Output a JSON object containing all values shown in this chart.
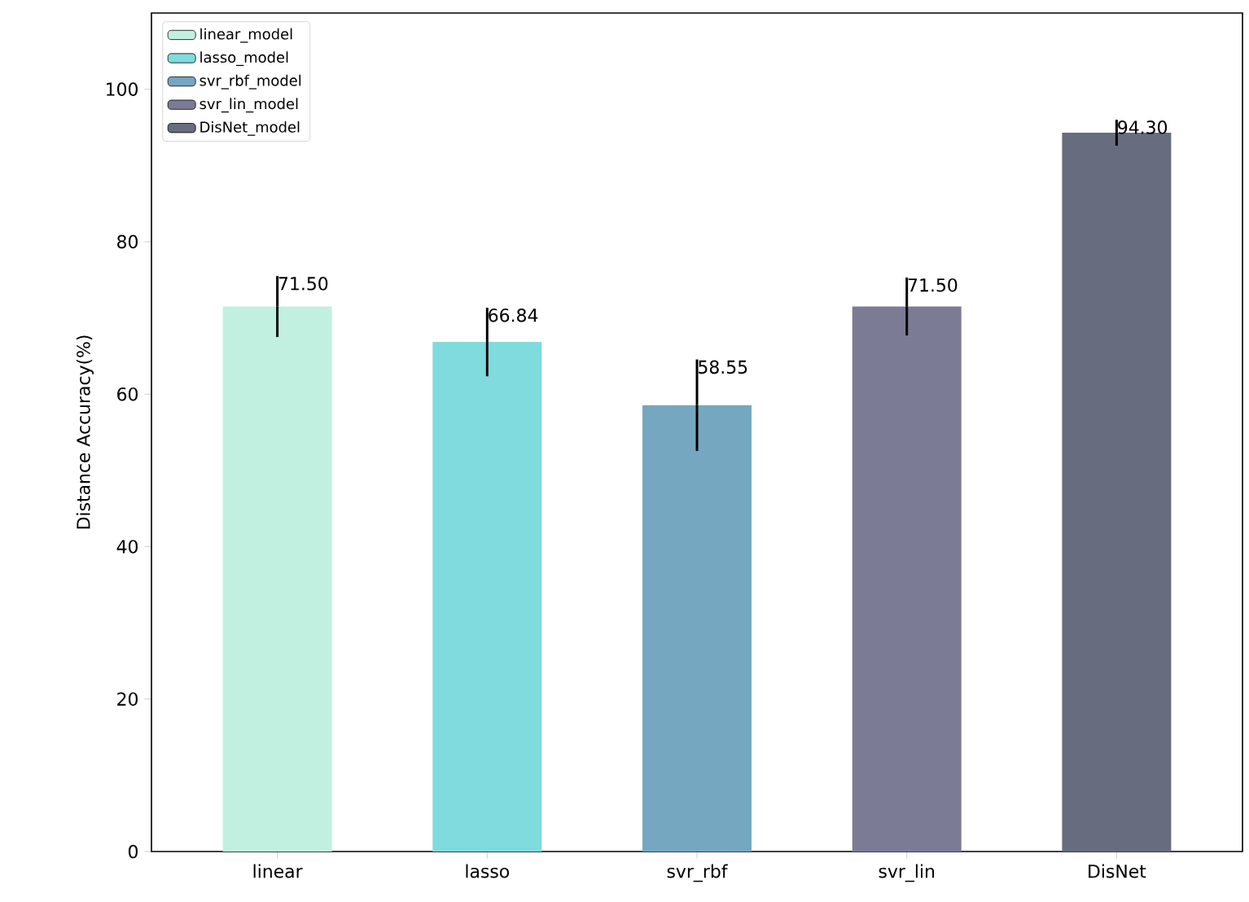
{
  "chart_data": {
    "type": "bar",
    "ylabel": "Distance Accuracy(%)",
    "categories": [
      "linear",
      "lasso",
      "svr_rbf",
      "svr_lin",
      "DisNet"
    ],
    "series": [
      {
        "name": "linear_model",
        "color": "#c2f0e0",
        "values": [
          71.5,
          null,
          null,
          null,
          null
        ],
        "errors": [
          4,
          null,
          null,
          null,
          null
        ],
        "value_labels": [
          "71.50",
          null,
          null,
          null,
          null
        ]
      },
      {
        "name": "lasso_model",
        "color": "#7fdbdd",
        "values": [
          null,
          66.84,
          null,
          null,
          null
        ],
        "errors": [
          null,
          4.5,
          null,
          null,
          null
        ],
        "value_labels": [
          null,
          "66.84",
          null,
          null,
          null
        ]
      },
      {
        "name": "svr_rbf_model",
        "color": "#75a7c1",
        "values": [
          null,
          null,
          58.55,
          null,
          null
        ],
        "errors": [
          null,
          null,
          6,
          null,
          null
        ],
        "value_labels": [
          null,
          null,
          "58.55",
          null,
          null
        ]
      },
      {
        "name": "svr_lin_model",
        "color": "#7c7b96",
        "values": [
          null,
          null,
          null,
          71.5,
          null
        ],
        "errors": [
          null,
          null,
          null,
          3.8,
          null
        ],
        "value_labels": [
          null,
          null,
          null,
          "71.50",
          null
        ]
      },
      {
        "name": "DisNet_model",
        "color": "#676c7e",
        "values": [
          null,
          null,
          null,
          null,
          94.3
        ],
        "errors": [
          null,
          null,
          null,
          null,
          1.7
        ],
        "value_labels": [
          null,
          null,
          null,
          null,
          "94.30"
        ]
      }
    ],
    "ylim": [
      0,
      110
    ],
    "yticks": [
      0,
      20,
      40,
      60,
      80,
      100
    ],
    "legend": "top left"
  }
}
